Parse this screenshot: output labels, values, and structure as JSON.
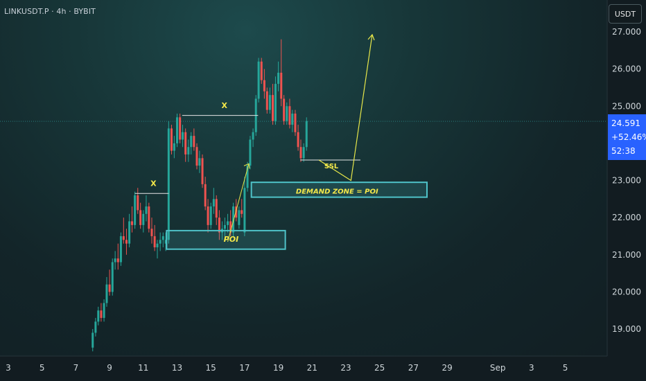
{
  "header": {
    "symbol": "LINKUSDT.P · 4h · BYBIT",
    "currency_button": "USDT"
  },
  "current_price": {
    "price": "24.591",
    "change": "+52.46%",
    "countdown": "52:38",
    "value": 24.591
  },
  "colors": {
    "up": "#26a69a",
    "down": "#ef5350",
    "annotation": "#e8e84a",
    "zone": "#4fc3c9",
    "badge": "#2962ff"
  },
  "chart_data": {
    "type": "candlestick",
    "y_axis": {
      "range": [
        18.4,
        27.5
      ],
      "ticks": [
        "19.000",
        "20.000",
        "21.000",
        "22.000",
        "23.000",
        "24.000",
        "25.000",
        "26.000",
        "27.000"
      ],
      "tick_values": [
        19,
        20,
        21,
        22,
        23,
        24,
        25,
        26,
        27
      ]
    },
    "x_axis": {
      "labels": [
        "3",
        "5",
        "7",
        "9",
        "11",
        "13",
        "15",
        "17",
        "19",
        "21",
        "23",
        "25",
        "27",
        "29",
        "Sep",
        "3",
        "5"
      ],
      "day_positions": [
        0,
        2,
        4,
        6,
        8,
        10,
        12,
        14,
        16,
        18,
        20,
        22,
        24,
        26,
        29,
        31,
        33
      ]
    },
    "candles_4h": [
      {
        "day": 5,
        "ohlc": [
          18.5,
          19.0,
          18.4,
          18.9
        ]
      },
      {
        "day": 5.17,
        "ohlc": [
          18.9,
          19.3,
          18.8,
          19.2
        ]
      },
      {
        "day": 5.33,
        "ohlc": [
          19.2,
          19.6,
          19.1,
          19.5
        ]
      },
      {
        "day": 5.5,
        "ohlc": [
          19.5,
          19.7,
          19.2,
          19.3
        ]
      },
      {
        "day": 5.67,
        "ohlc": [
          19.3,
          19.8,
          19.2,
          19.7
        ]
      },
      {
        "day": 5.83,
        "ohlc": [
          19.7,
          20.4,
          19.6,
          20.2
        ]
      },
      {
        "day": 6,
        "ohlc": [
          20.2,
          20.6,
          19.9,
          20.0
        ]
      },
      {
        "day": 6.17,
        "ohlc": [
          20.0,
          20.9,
          19.9,
          20.8
        ]
      },
      {
        "day": 6.33,
        "ohlc": [
          20.8,
          21.1,
          20.6,
          20.9
        ]
      },
      {
        "day": 6.5,
        "ohlc": [
          20.9,
          21.3,
          20.6,
          20.8
        ]
      },
      {
        "day": 6.67,
        "ohlc": [
          20.8,
          21.6,
          20.7,
          21.5
        ]
      },
      {
        "day": 6.83,
        "ohlc": [
          21.5,
          22.0,
          21.3,
          21.4
        ]
      },
      {
        "day": 7,
        "ohlc": [
          21.4,
          21.7,
          21.0,
          21.3
        ]
      },
      {
        "day": 7.17,
        "ohlc": [
          21.3,
          22.1,
          21.2,
          21.9
        ]
      },
      {
        "day": 7.33,
        "ohlc": [
          21.9,
          22.3,
          21.6,
          21.8
        ]
      },
      {
        "day": 7.5,
        "ohlc": [
          21.8,
          22.7,
          21.7,
          22.6
        ]
      },
      {
        "day": 7.67,
        "ohlc": [
          22.6,
          22.8,
          22.1,
          22.2
        ]
      },
      {
        "day": 7.83,
        "ohlc": [
          22.2,
          22.4,
          21.7,
          21.8
        ]
      },
      {
        "day": 8,
        "ohlc": [
          21.8,
          22.2,
          21.6,
          22.1
        ]
      },
      {
        "day": 8.17,
        "ohlc": [
          22.1,
          22.6,
          21.9,
          22.3
        ]
      },
      {
        "day": 8.33,
        "ohlc": [
          22.3,
          22.4,
          21.6,
          21.7
        ]
      },
      {
        "day": 8.5,
        "ohlc": [
          21.7,
          22.0,
          21.3,
          21.5
        ]
      },
      {
        "day": 8.67,
        "ohlc": [
          21.5,
          21.8,
          21.1,
          21.2
        ]
      },
      {
        "day": 8.83,
        "ohlc": [
          21.2,
          21.4,
          20.9,
          21.3
        ]
      },
      {
        "day": 9,
        "ohlc": [
          21.3,
          21.6,
          21.1,
          21.4
        ]
      },
      {
        "day": 9.17,
        "ohlc": [
          21.4,
          21.6,
          21.2,
          21.5
        ]
      },
      {
        "day": 9.33,
        "ohlc": [
          21.3,
          21.6,
          21.1,
          21.4
        ]
      },
      {
        "day": 9.5,
        "ohlc": [
          21.4,
          24.6,
          21.3,
          24.4
        ]
      },
      {
        "day": 9.67,
        "ohlc": [
          24.4,
          24.5,
          23.7,
          23.8
        ]
      },
      {
        "day": 9.83,
        "ohlc": [
          23.8,
          24.2,
          23.6,
          24.0
        ]
      },
      {
        "day": 10,
        "ohlc": [
          24.0,
          24.8,
          23.9,
          24.7
        ]
      },
      {
        "day": 10.17,
        "ohlc": [
          24.7,
          24.8,
          24.0,
          24.1
        ]
      },
      {
        "day": 10.33,
        "ohlc": [
          24.1,
          24.5,
          23.9,
          24.3
        ]
      },
      {
        "day": 10.5,
        "ohlc": [
          24.3,
          24.4,
          23.5,
          23.7
        ]
      },
      {
        "day": 10.67,
        "ohlc": [
          23.7,
          24.1,
          23.5,
          23.9
        ]
      },
      {
        "day": 10.83,
        "ohlc": [
          23.9,
          24.3,
          23.7,
          24.2
        ]
      },
      {
        "day": 11,
        "ohlc": [
          24.2,
          24.4,
          23.8,
          23.9
        ]
      },
      {
        "day": 11.17,
        "ohlc": [
          23.9,
          24.0,
          23.3,
          23.4
        ]
      },
      {
        "day": 11.33,
        "ohlc": [
          23.4,
          23.8,
          23.2,
          23.6
        ]
      },
      {
        "day": 11.5,
        "ohlc": [
          23.6,
          23.7,
          22.8,
          22.9
        ]
      },
      {
        "day": 11.67,
        "ohlc": [
          22.9,
          23.1,
          22.2,
          22.3
        ]
      },
      {
        "day": 11.83,
        "ohlc": [
          22.3,
          22.5,
          21.6,
          21.8
        ]
      },
      {
        "day": 12,
        "ohlc": [
          21.8,
          22.4,
          21.7,
          22.3
        ]
      },
      {
        "day": 12.17,
        "ohlc": [
          22.3,
          22.8,
          22.1,
          22.5
        ]
      },
      {
        "day": 12.33,
        "ohlc": [
          22.5,
          22.6,
          21.8,
          22.0
        ]
      },
      {
        "day": 12.5,
        "ohlc": [
          22.0,
          22.2,
          21.4,
          21.6
        ]
      },
      {
        "day": 12.67,
        "ohlc": [
          21.6,
          21.9,
          21.4,
          21.7
        ]
      },
      {
        "day": 12.83,
        "ohlc": [
          21.7,
          22.0,
          21.5,
          21.8
        ]
      },
      {
        "day": 13,
        "ohlc": [
          21.8,
          22.1,
          21.6,
          21.9
        ]
      },
      {
        "day": 13.17,
        "ohlc": [
          21.9,
          22.2,
          21.5,
          21.6
        ]
      },
      {
        "day": 13.33,
        "ohlc": [
          21.6,
          22.4,
          21.5,
          22.3
        ]
      },
      {
        "day": 13.5,
        "ohlc": [
          22.3,
          22.5,
          21.9,
          22.0
        ]
      },
      {
        "day": 13.67,
        "ohlc": [
          21.8,
          22.3,
          21.7,
          22.2
        ]
      },
      {
        "day": 13.83,
        "ohlc": [
          22.2,
          22.5,
          22.0,
          22.1
        ]
      },
      {
        "day": 14,
        "ohlc": [
          21.6,
          23.1,
          21.5,
          22.8
        ]
      },
      {
        "day": 14.17,
        "ohlc": [
          22.8,
          23.5,
          22.7,
          23.4
        ]
      },
      {
        "day": 14.33,
        "ohlc": [
          23.4,
          24.2,
          23.3,
          24.1
        ]
      },
      {
        "day": 14.5,
        "ohlc": [
          24.1,
          24.4,
          23.9,
          24.3
        ]
      },
      {
        "day": 14.67,
        "ohlc": [
          24.3,
          25.3,
          24.2,
          25.2
        ]
      },
      {
        "day": 14.83,
        "ohlc": [
          25.2,
          26.3,
          25.1,
          26.2
        ]
      },
      {
        "day": 15,
        "ohlc": [
          26.2,
          26.3,
          25.6,
          25.7
        ]
      },
      {
        "day": 15.17,
        "ohlc": [
          25.7,
          26.0,
          25.2,
          25.4
        ]
      },
      {
        "day": 15.33,
        "ohlc": [
          25.4,
          25.5,
          24.8,
          24.9
        ]
      },
      {
        "day": 15.5,
        "ohlc": [
          24.9,
          25.5,
          24.8,
          25.3
        ]
      },
      {
        "day": 15.67,
        "ohlc": [
          25.3,
          25.6,
          24.5,
          24.6
        ]
      },
      {
        "day": 15.83,
        "ohlc": [
          24.6,
          25.8,
          24.5,
          25.6
        ]
      },
      {
        "day": 16,
        "ohlc": [
          25.6,
          26.2,
          25.4,
          25.9
        ]
      },
      {
        "day": 16.17,
        "ohlc": [
          25.9,
          26.8,
          25.0,
          25.2
        ]
      },
      {
        "day": 16.33,
        "ohlc": [
          25.2,
          25.3,
          24.5,
          24.6
        ]
      },
      {
        "day": 16.5,
        "ohlc": [
          24.6,
          25.1,
          24.5,
          25.0
        ]
      },
      {
        "day": 16.67,
        "ohlc": [
          25.0,
          25.2,
          24.4,
          24.5
        ]
      },
      {
        "day": 16.83,
        "ohlc": [
          24.5,
          24.9,
          24.3,
          24.8
        ]
      },
      {
        "day": 17,
        "ohlc": [
          24.8,
          24.9,
          24.2,
          24.3
        ]
      },
      {
        "day": 17.17,
        "ohlc": [
          24.3,
          24.5,
          23.8,
          23.9
        ]
      },
      {
        "day": 17.33,
        "ohlc": [
          23.9,
          24.1,
          23.5,
          23.6
        ]
      },
      {
        "day": 17.5,
        "ohlc": [
          23.6,
          24.0,
          23.5,
          23.9
        ]
      },
      {
        "day": 17.67,
        "ohlc": [
          23.9,
          24.7,
          23.8,
          24.6
        ]
      }
    ],
    "annotations": [
      {
        "label": "X",
        "kind": "swing-high-line"
      },
      {
        "label": "X",
        "kind": "swing-high-line"
      },
      {
        "label": "POI",
        "kind": "zone"
      },
      {
        "label": "DEMAND ZONE = POI",
        "kind": "zone"
      },
      {
        "label": "SSL",
        "kind": "liquidity-line"
      }
    ],
    "projection_arrow_target": 27.0
  },
  "annotation_text": {
    "x1": "X",
    "x2": "X",
    "poi": "POI",
    "demand": "DEMAND ZONE = POI",
    "ssl": "SSL"
  }
}
